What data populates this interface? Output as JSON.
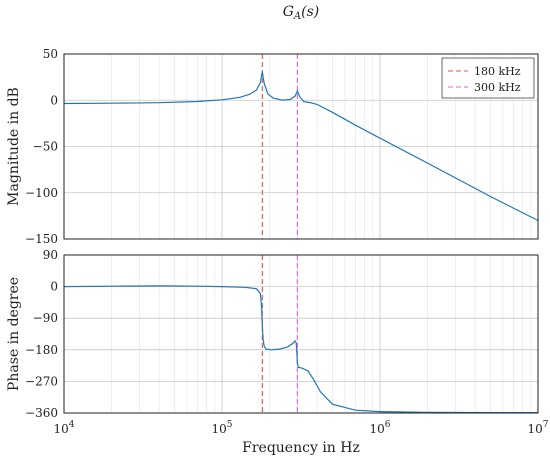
{
  "chart_data": [
    {
      "type": "line",
      "title": "G_A(s)",
      "xlabel": "",
      "ylabel": "Magnitude in dB",
      "x_scale": "log",
      "xlim": [
        10000,
        10000000
      ],
      "ylim": [
        -150,
        50
      ],
      "yticks": [
        -150,
        -100,
        -50,
        0,
        50
      ],
      "grid": true,
      "legend_position": "top-right",
      "series": [
        {
          "color": "#1f77b4",
          "x": [
            10000,
            20000,
            40000,
            70000,
            100000,
            130000,
            150000,
            165000,
            175000,
            180000,
            185000,
            195000,
            210000,
            240000,
            270000,
            290000,
            300000,
            310000,
            330000,
            360000,
            400000,
            500000,
            700000,
            1000000,
            2000000,
            5000000,
            10000000
          ],
          "values": [
            -3.5,
            -3.2,
            -2.6,
            -1.4,
            0.5,
            3.2,
            6.5,
            11,
            19,
            31,
            18,
            7,
            2.5,
            0.2,
            0.8,
            4.5,
            10,
            4,
            -1.5,
            -2.5,
            -4.5,
            -13,
            -27,
            -41,
            -68,
            -104,
            -130
          ]
        }
      ],
      "markers": [
        {
          "name": "180 kHz",
          "x": 180000,
          "color": "#e05050",
          "style": "dashed"
        },
        {
          "name": "300 kHz",
          "x": 300000,
          "color": "#e060e0",
          "style": "dashed"
        }
      ]
    },
    {
      "type": "line",
      "xlabel": "Frequency in Hz",
      "ylabel": "Phase in degree",
      "x_scale": "log",
      "xlim": [
        10000,
        10000000
      ],
      "ylim": [
        -360,
        90
      ],
      "yticks": [
        -360,
        -270,
        -180,
        -90,
        0,
        90
      ],
      "xticks": [
        {
          "base": "10",
          "exp": "4"
        },
        {
          "base": "10",
          "exp": "5"
        },
        {
          "base": "10",
          "exp": "6"
        },
        {
          "base": "10",
          "exp": "7"
        }
      ],
      "grid": true,
      "series": [
        {
          "color": "#1f77b4",
          "x": [
            10000,
            20000,
            40000,
            70000,
            100000,
            140000,
            165000,
            175000,
            178000,
            180000,
            182000,
            185000,
            190000,
            205000,
            230000,
            260000,
            280000,
            290000,
            295000,
            298000,
            300000,
            305000,
            320000,
            350000,
            380000,
            420000,
            500000,
            700000,
            1000000,
            2000000,
            5000000,
            10000000
          ],
          "values": [
            0,
            1,
            2,
            1,
            0,
            -2,
            -6,
            -20,
            -60,
            -110,
            -150,
            -170,
            -178,
            -180,
            -178,
            -172,
            -162,
            -155,
            -160,
            -190,
            -220,
            -230,
            -232,
            -240,
            -265,
            -300,
            -335,
            -352,
            -356,
            -358,
            -359,
            -359
          ]
        }
      ]
    }
  ]
}
